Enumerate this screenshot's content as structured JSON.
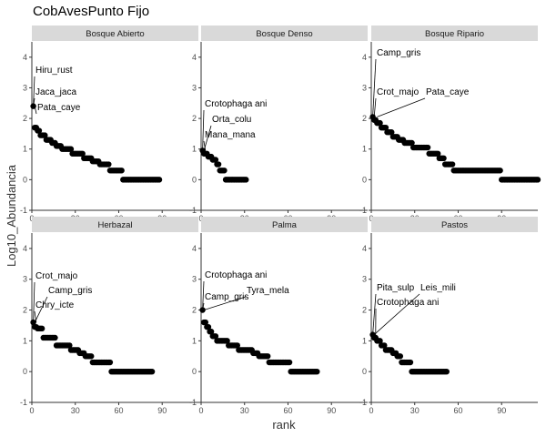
{
  "title": "CobAvesPunto Fijo",
  "colors": {
    "strip": "#d9d9d9",
    "point": "#000000",
    "axis": "#333333",
    "tick_text": "#4d4d4d"
  },
  "chart_data": {
    "type": "scatter",
    "title": "CobAvesPunto Fijo",
    "xlabel": "rank",
    "ylabel": "Log10_Abundancia",
    "xlim": [
      0,
      115
    ],
    "ylim": [
      -1,
      4.5
    ],
    "x_ticks": [
      "0",
      "30",
      "60",
      "90"
    ],
    "y_ticks": [
      "-1",
      "0",
      "1",
      "2",
      "3",
      "4"
    ],
    "grid": false,
    "layout": "2 rows x 3 columns facets",
    "panels": [
      {
        "name": "Bosque Abierto",
        "steps": [
          [
            1,
            2.4
          ],
          [
            2,
            1.7
          ],
          [
            4,
            1.6
          ],
          [
            6,
            1.45
          ],
          [
            10,
            1.3
          ],
          [
            14,
            1.2
          ],
          [
            17,
            1.1
          ],
          [
            21,
            1.0
          ],
          [
            28,
            0.85
          ],
          [
            36,
            0.7
          ],
          [
            42,
            0.6
          ],
          [
            47,
            0.5
          ],
          [
            54,
            0.3
          ],
          [
            63,
            0.0
          ],
          [
            88,
            0.0
          ]
        ],
        "labels": [
          {
            "text": "Hiru_rust",
            "x": 1,
            "y": 3.3
          },
          {
            "text": "Jaca_jaca",
            "x": 1,
            "y": 2.65
          },
          {
            "text": "Pata_caye",
            "x": 2,
            "y": 2.25
          }
        ]
      },
      {
        "name": "Bosque Denso",
        "steps": [
          [
            1,
            0.95
          ],
          [
            2,
            0.85
          ],
          [
            5,
            0.75
          ],
          [
            8,
            0.65
          ],
          [
            11,
            0.5
          ],
          [
            13,
            0.3
          ],
          [
            17,
            0.0
          ],
          [
            31,
            0.0
          ]
        ],
        "labels": [
          {
            "text": "Crotophaga ani",
            "x": 1,
            "y": 2.4
          },
          {
            "text": "Orta_colu",
            "x": 2,
            "y": 1.95
          },
          {
            "text": "Mana_mana",
            "x": 3,
            "y": 1.4
          }
        ]
      },
      {
        "name": "Bosque Ripario",
        "steps": [
          [
            1,
            2.05
          ],
          [
            2,
            1.95
          ],
          [
            4,
            1.85
          ],
          [
            7,
            1.7
          ],
          [
            11,
            1.55
          ],
          [
            15,
            1.4
          ],
          [
            19,
            1.3
          ],
          [
            23,
            1.2
          ],
          [
            29,
            1.05
          ],
          [
            40,
            0.85
          ],
          [
            47,
            0.7
          ],
          [
            51,
            0.5
          ],
          [
            57,
            0.3
          ],
          [
            90,
            0.0
          ],
          [
            115,
            0.0
          ]
        ],
        "labels": [
          {
            "text": "Camp_gris",
            "x": 1,
            "y": 3.2
          },
          {
            "text": "Crot_majo",
            "x": 2,
            "y": 2.8
          },
          {
            "text": "Pata_caye",
            "x": 4,
            "y": 2.8
          }
        ]
      },
      {
        "name": "Herbazal",
        "steps": [
          [
            1,
            1.6
          ],
          [
            2,
            1.45
          ],
          [
            4,
            1.4
          ],
          [
            8,
            1.1
          ],
          [
            14,
            1.1
          ],
          [
            17,
            0.85
          ],
          [
            27,
            0.7
          ],
          [
            33,
            0.6
          ],
          [
            37,
            0.5
          ],
          [
            42,
            0.3
          ],
          [
            55,
            0.0
          ],
          [
            83,
            0.0
          ]
        ],
        "labels": [
          {
            "text": "Crot_majo",
            "x": 1,
            "y": 3.05
          },
          {
            "text": "Camp_gris",
            "x": 2,
            "y": 2.55
          },
          {
            "text": "Chry_icte",
            "x": 3,
            "y": 2.05
          }
        ]
      },
      {
        "name": "Palma",
        "steps": [
          [
            1,
            2.0
          ],
          [
            2,
            1.6
          ],
          [
            4,
            1.45
          ],
          [
            6,
            1.3
          ],
          [
            8,
            1.15
          ],
          [
            11,
            1.0
          ],
          [
            19,
            0.85
          ],
          [
            26,
            0.7
          ],
          [
            36,
            0.6
          ],
          [
            40,
            0.5
          ],
          [
            47,
            0.3
          ],
          [
            62,
            0.0
          ],
          [
            80,
            0.0
          ]
        ],
        "labels": [
          {
            "text": "Crotophaga ani",
            "x": 1,
            "y": 3.05
          },
          {
            "text": "Camp_gris",
            "x": 1,
            "y": 2.3
          },
          {
            "text": "Tyra_mela",
            "x": 2,
            "y": 2.55
          }
        ]
      },
      {
        "name": "Pastos",
        "steps": [
          [
            1,
            1.2
          ],
          [
            2,
            1.1
          ],
          [
            4,
            1.0
          ],
          [
            7,
            0.85
          ],
          [
            10,
            0.7
          ],
          [
            15,
            0.6
          ],
          [
            18,
            0.5
          ],
          [
            21,
            0.3
          ],
          [
            28,
            0.0
          ],
          [
            52,
            0.0
          ]
        ],
        "labels": [
          {
            "text": "Pita_sulp",
            "x": 1,
            "y": 2.6
          },
          {
            "text": "Leis_mili",
            "x": 2,
            "y": 2.6
          },
          {
            "text": "Crotophaga ani",
            "x": 3,
            "y": 2.15
          }
        ]
      }
    ]
  }
}
